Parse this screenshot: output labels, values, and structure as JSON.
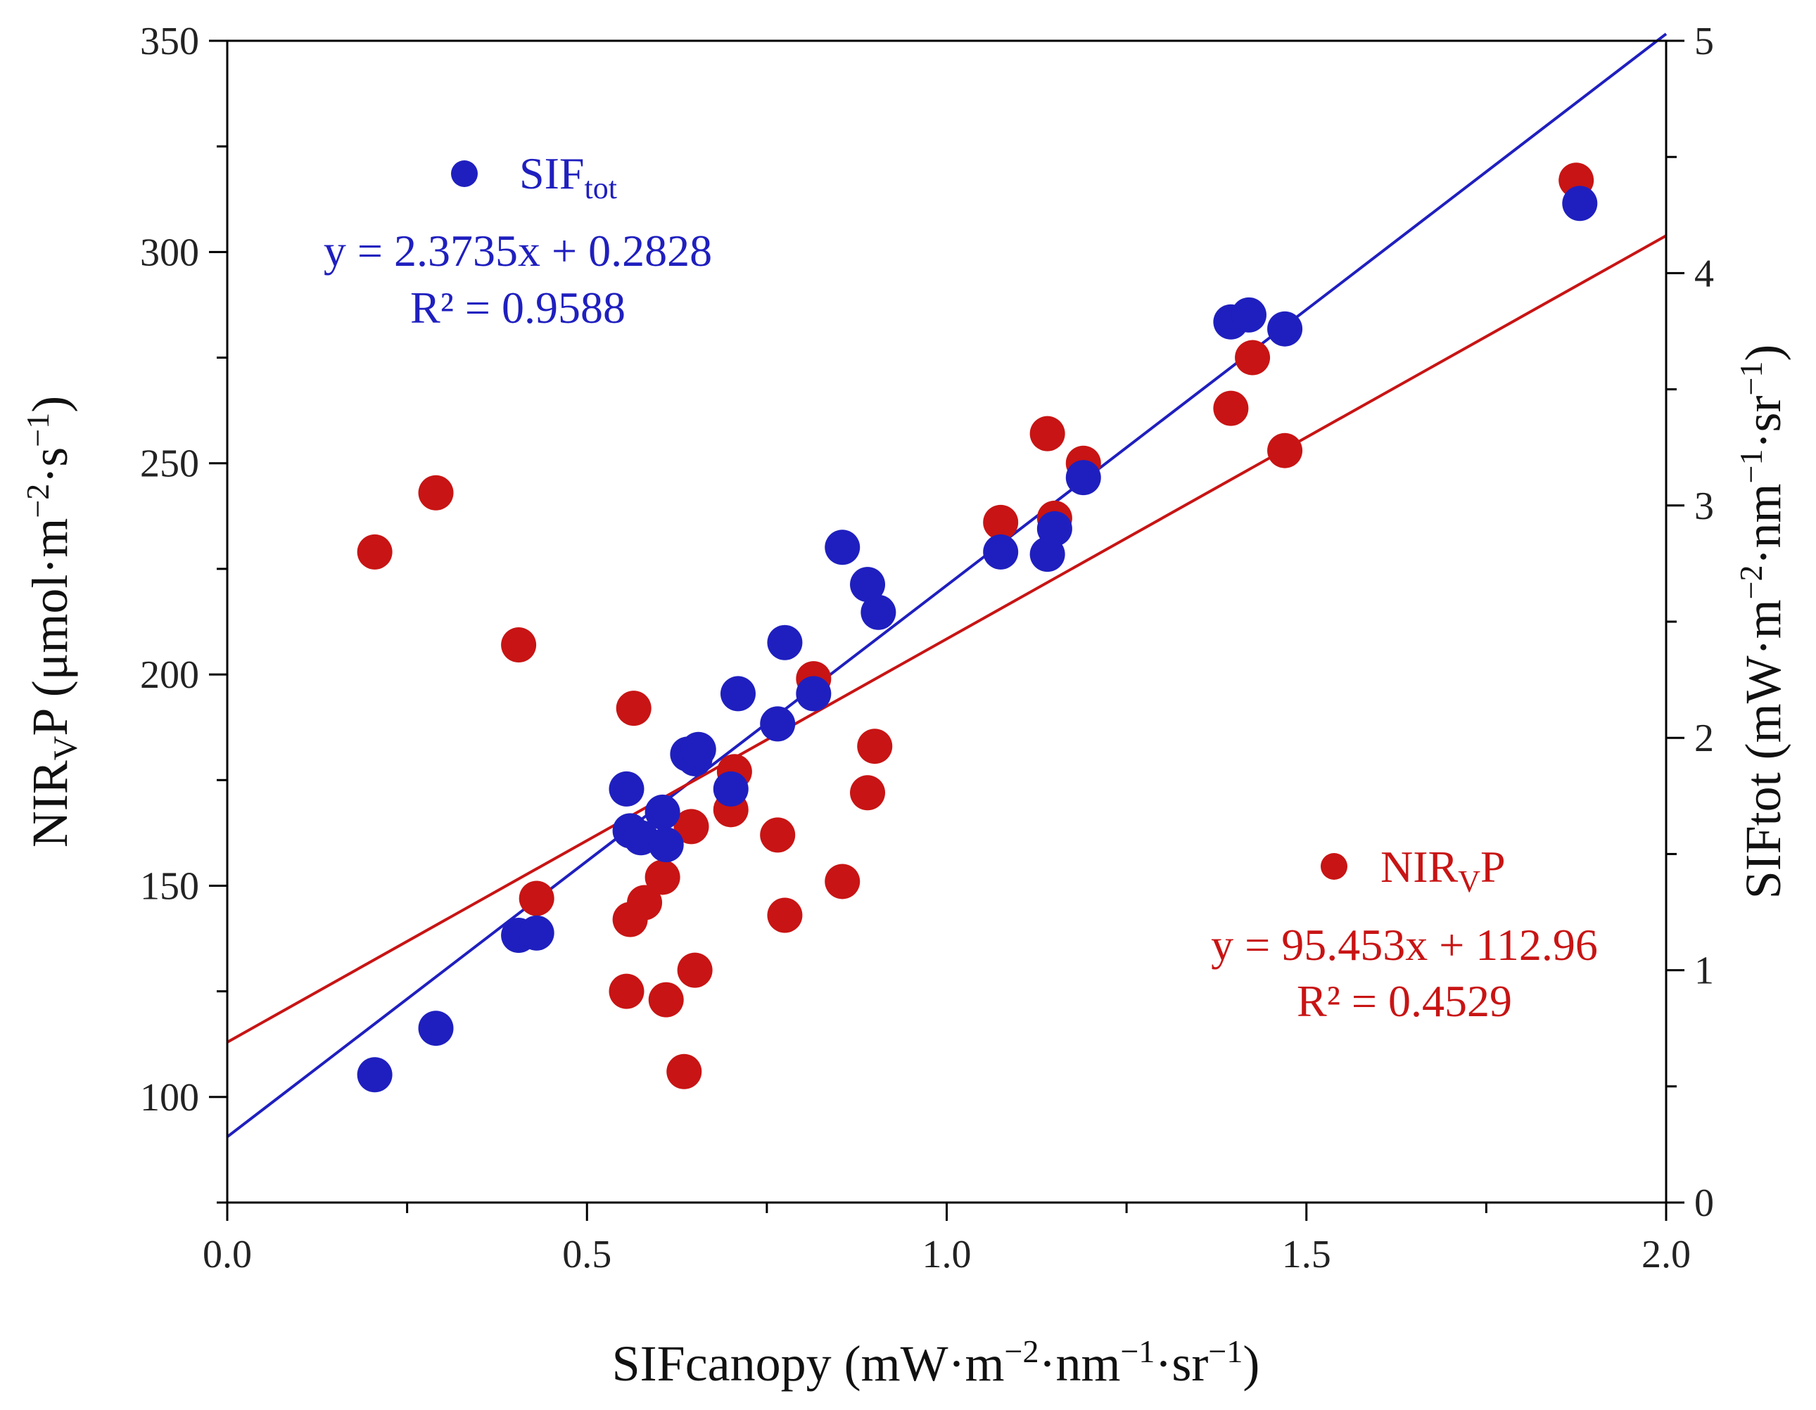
{
  "chart_data": {
    "type": "scatter",
    "xlabel": "SIFcanopy (mW·m⁻²·nm⁻¹·sr⁻¹)",
    "ylabel_left": "NIRᵥP (μmol·m⁻²·s⁻¹)",
    "ylabel_right": "SIFtot (mW·m⁻²·nm⁻¹·sr⁻¹)",
    "xlim": [
      0,
      2
    ],
    "ylim_left": [
      75,
      350
    ],
    "ylim_right": [
      0,
      5
    ],
    "x_ticks": [
      "0.0",
      "0.5",
      "1.0",
      "1.5",
      "2.0"
    ],
    "x_tick_values": [
      0,
      0.5,
      1.0,
      1.5,
      2.0
    ],
    "y_left_ticks": [
      "100",
      "150",
      "200",
      "250",
      "300",
      "350"
    ],
    "y_left_tick_values": [
      100,
      150,
      200,
      250,
      300,
      350
    ],
    "y_right_ticks": [
      "0",
      "1",
      "2",
      "3",
      "4",
      "5"
    ],
    "y_right_tick_values": [
      0,
      1,
      2,
      3,
      4,
      5
    ],
    "series": [
      {
        "name": "SIFtot",
        "legend_main": "SIF",
        "legend_sub": "tot",
        "axis": "right",
        "color": "#1f1fbf",
        "equation": "y = 2.3735x + 0.2828",
        "r2": "R² = 0.9588",
        "fit": {
          "slope": 2.3735,
          "intercept": 0.2828
        },
        "points": [
          [
            0.205,
            0.55
          ],
          [
            0.29,
            0.75
          ],
          [
            0.405,
            1.15
          ],
          [
            0.43,
            1.16
          ],
          [
            0.555,
            1.78
          ],
          [
            0.56,
            1.6
          ],
          [
            0.575,
            1.57
          ],
          [
            0.605,
            1.68
          ],
          [
            0.61,
            1.54
          ],
          [
            0.64,
            1.93
          ],
          [
            0.65,
            1.91
          ],
          [
            0.655,
            1.95
          ],
          [
            0.7,
            1.78
          ],
          [
            0.71,
            2.19
          ],
          [
            0.765,
            2.06
          ],
          [
            0.775,
            2.41
          ],
          [
            0.815,
            2.19
          ],
          [
            0.855,
            2.82
          ],
          [
            0.89,
            2.66
          ],
          [
            0.905,
            2.54
          ],
          [
            1.075,
            2.8
          ],
          [
            1.14,
            2.79
          ],
          [
            1.15,
            2.9
          ],
          [
            1.19,
            3.12
          ],
          [
            1.395,
            3.79
          ],
          [
            1.42,
            3.82
          ],
          [
            1.47,
            3.76
          ],
          [
            1.88,
            4.3
          ]
        ]
      },
      {
        "name": "NIRvP",
        "legend_main": "NIR",
        "legend_sub": "V",
        "legend_tail": "P",
        "axis": "left",
        "color": "#c81414",
        "equation": "y = 95.453x + 112.96",
        "r2": "R² = 0.4529",
        "fit": {
          "slope": 95.453,
          "intercept": 112.96
        },
        "points": [
          [
            0.205,
            229
          ],
          [
            0.29,
            243
          ],
          [
            0.405,
            207
          ],
          [
            0.43,
            147
          ],
          [
            0.555,
            125
          ],
          [
            0.56,
            142
          ],
          [
            0.565,
            192
          ],
          [
            0.58,
            146
          ],
          [
            0.605,
            152
          ],
          [
            0.61,
            123
          ],
          [
            0.635,
            106
          ],
          [
            0.645,
            164
          ],
          [
            0.65,
            130
          ],
          [
            0.7,
            168
          ],
          [
            0.705,
            177
          ],
          [
            0.765,
            162
          ],
          [
            0.775,
            143
          ],
          [
            0.815,
            199
          ],
          [
            0.855,
            151
          ],
          [
            0.89,
            172
          ],
          [
            0.9,
            183
          ],
          [
            1.075,
            236
          ],
          [
            1.14,
            257
          ],
          [
            1.15,
            237
          ],
          [
            1.19,
            250
          ],
          [
            1.395,
            263
          ],
          [
            1.425,
            275
          ],
          [
            1.47,
            253
          ],
          [
            1.875,
            317
          ]
        ]
      }
    ]
  }
}
